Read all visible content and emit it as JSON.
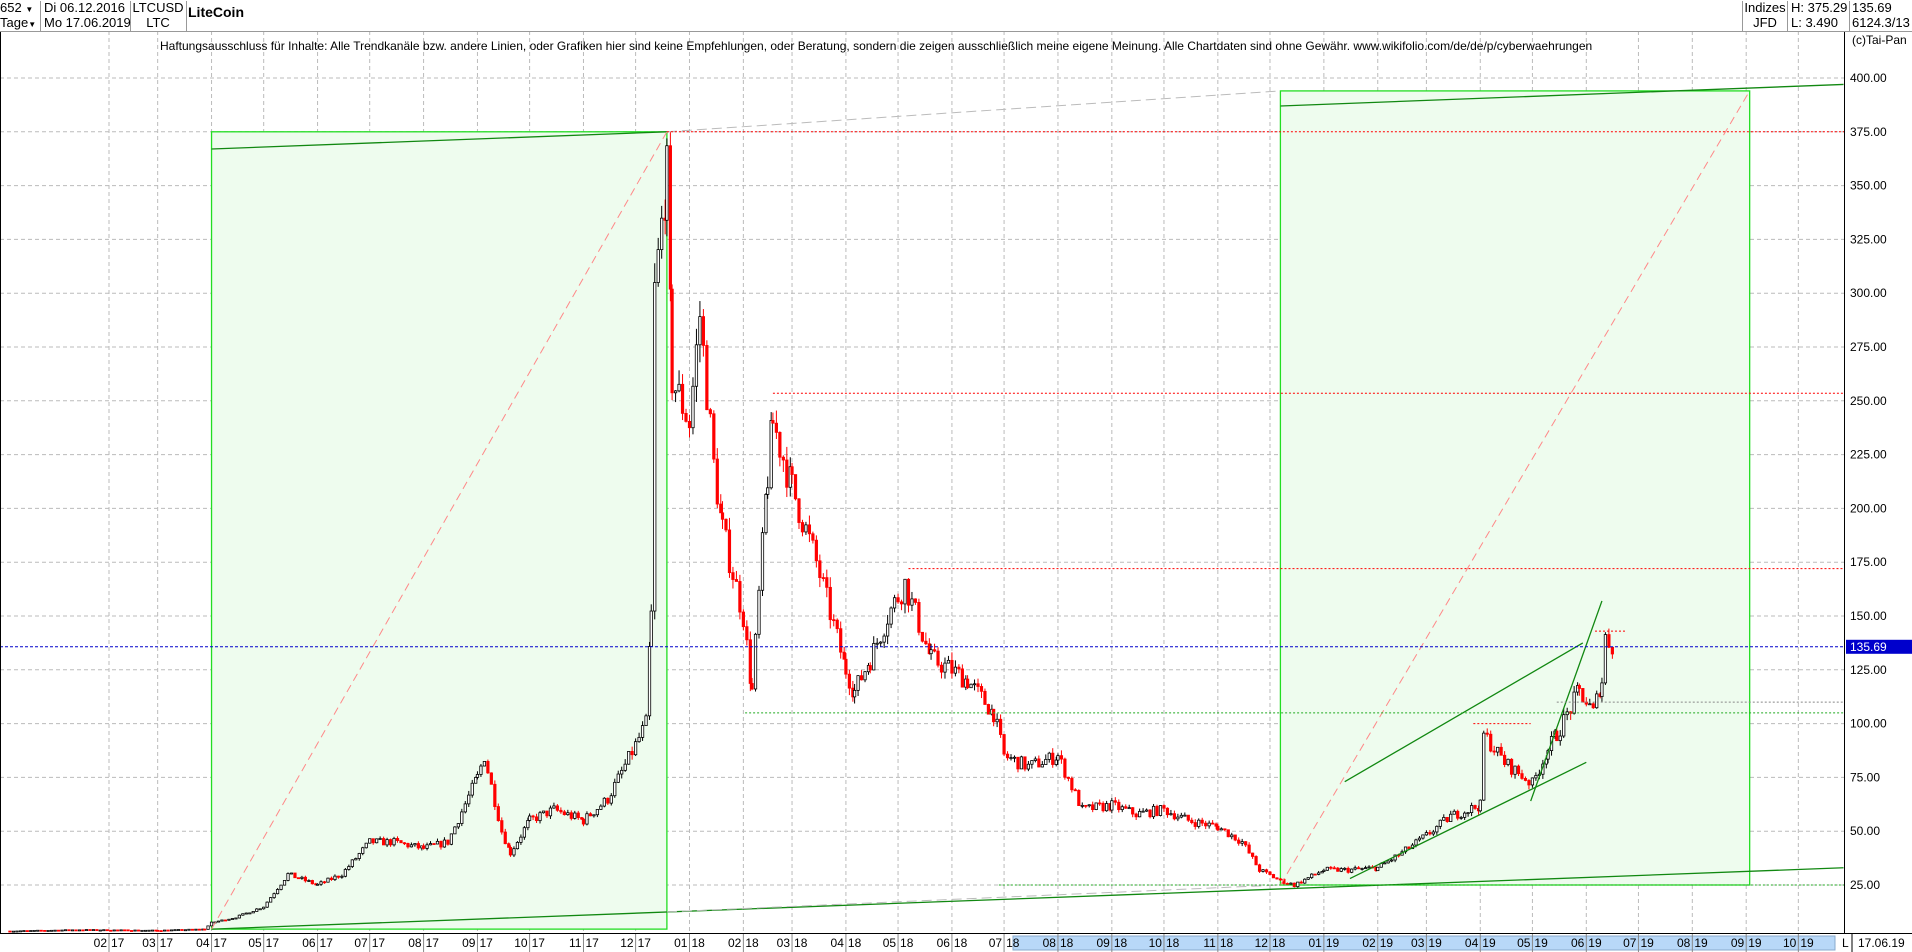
{
  "header": {
    "bars_count": "652",
    "period": "Tage",
    "start_date": "Di 06.12.2016",
    "end_date": "Mo 17.06.2019",
    "symbol": "LTCUSD",
    "symbol_short": "LTC",
    "title": "LiteCoin",
    "market": "Indizes",
    "source": "JFD",
    "high": "H: 375.29",
    "low": "L: 3.490",
    "last": "135.69",
    "info": "6124.3/13",
    "copyright": "(c)Tai-Pan"
  },
  "disclaimer": "Haftungsausschluss für Inhalte: Alle Trendkanäle bzw. andere Linien, oder Grafiken hier sind keine Empfehlungen, oder Beratung, sondern die zeigen ausschließlich meine eigene Meinung. Alle Chartdaten sind ohne Gewähr.  www.wikifolio.com/de/de/p/cyberwaehrungen",
  "colors": {
    "up": "#000000",
    "down": "#ff0000",
    "box_fill": "#eefcee",
    "box_stroke": "#22dd22",
    "trend": "#118811",
    "last_line": "#0000cc",
    "highlight": "#b8d8f8"
  },
  "chart_data": {
    "type": "candlestick",
    "ylim": [
      0,
      410
    ],
    "yticks": [
      "25.00",
      "50.00",
      "75.00",
      "100.00",
      "125.00",
      "150.00",
      "175.00",
      "200.00",
      "225.00",
      "250.00",
      "275.00",
      "300.00",
      "325.00",
      "350.00",
      "375.00",
      "400.00"
    ],
    "xticks": [
      "02 17",
      "03 17",
      "04 17",
      "05 17",
      "06 17",
      "07 17",
      "08 17",
      "09 17",
      "10 17",
      "11 17",
      "12 17",
      "01 18",
      "02 18",
      "03 18",
      "04 18",
      "05 18",
      "06 18",
      "07 18",
      "08 18",
      "09 18",
      "10 18",
      "11 18",
      "12 18",
      "01 19",
      "02 19",
      "03 19",
      "04 19",
      "05 19",
      "06 19",
      "07 19",
      "08 19",
      "09 19",
      "10 19"
    ],
    "xtick_dates": [
      "2017-02-01",
      "2017-03-01",
      "2017-04-01",
      "2017-05-01",
      "2017-06-01",
      "2017-07-01",
      "2017-08-01",
      "2017-09-01",
      "2017-10-01",
      "2017-11-01",
      "2017-12-01",
      "2018-01-01",
      "2018-02-01",
      "2018-03-01",
      "2018-04-01",
      "2018-05-01",
      "2018-06-01",
      "2018-07-01",
      "2018-08-01",
      "2018-09-01",
      "2018-10-01",
      "2018-11-01",
      "2018-12-01",
      "2019-01-01",
      "2019-02-01",
      "2019-03-01",
      "2019-04-01",
      "2019-05-01",
      "2019-06-01",
      "2019-07-01",
      "2019-08-01",
      "2019-09-01",
      "2019-10-01"
    ],
    "axis_end_label": "L",
    "axis_end_date": "17.06.19",
    "last_value_label": "135.69",
    "last_value": 135.69,
    "grid": true,
    "closes": [
      [
        "2016-12-06",
        3.6
      ],
      [
        "2017-01-15",
        4.2
      ],
      [
        "2017-03-01",
        3.9
      ],
      [
        "2017-03-28",
        4.5
      ],
      [
        "2017-04-01",
        7.5
      ],
      [
        "2017-04-15",
        10
      ],
      [
        "2017-05-01",
        15
      ],
      [
        "2017-05-15",
        30
      ],
      [
        "2017-06-01",
        25
      ],
      [
        "2017-06-15",
        30
      ],
      [
        "2017-07-01",
        45
      ],
      [
        "2017-07-15",
        45
      ],
      [
        "2017-08-01",
        42
      ],
      [
        "2017-08-15",
        45
      ],
      [
        "2017-09-01",
        75
      ],
      [
        "2017-09-05",
        85
      ],
      [
        "2017-09-15",
        50
      ],
      [
        "2017-09-20",
        40
      ],
      [
        "2017-10-01",
        55
      ],
      [
        "2017-10-15",
        60
      ],
      [
        "2017-11-01",
        55
      ],
      [
        "2017-11-15",
        65
      ],
      [
        "2017-12-01",
        90
      ],
      [
        "2017-12-07",
        100
      ],
      [
        "2017-12-10",
        150
      ],
      [
        "2017-12-12",
        300
      ],
      [
        "2017-12-19",
        355
      ],
      [
        "2017-12-22",
        260
      ],
      [
        "2018-01-01",
        240
      ],
      [
        "2018-01-07",
        290
      ],
      [
        "2018-01-15",
        220
      ],
      [
        "2018-01-20",
        190
      ],
      [
        "2018-02-01",
        150
      ],
      [
        "2018-02-06",
        115
      ],
      [
        "2018-02-15",
        215
      ],
      [
        "2018-02-18",
        240
      ],
      [
        "2018-03-01",
        210
      ],
      [
        "2018-03-15",
        175
      ],
      [
        "2018-04-01",
        125
      ],
      [
        "2018-04-06",
        115
      ],
      [
        "2018-04-15",
        130
      ],
      [
        "2018-04-25",
        150
      ],
      [
        "2018-05-05",
        165
      ],
      [
        "2018-05-20",
        130
      ],
      [
        "2018-06-01",
        125
      ],
      [
        "2018-06-10",
        120
      ],
      [
        "2018-06-25",
        105
      ],
      [
        "2018-07-01",
        85
      ],
      [
        "2018-07-15",
        80
      ],
      [
        "2018-08-01",
        85
      ],
      [
        "2018-08-15",
        60
      ],
      [
        "2018-09-01",
        62
      ],
      [
        "2018-09-15",
        58
      ],
      [
        "2018-10-01",
        60
      ],
      [
        "2018-10-15",
        55
      ],
      [
        "2018-11-01",
        52
      ],
      [
        "2018-11-15",
        45
      ],
      [
        "2018-11-25",
        32
      ],
      [
        "2018-12-07",
        27
      ],
      [
        "2018-12-15",
        25
      ],
      [
        "2019-01-01",
        32
      ],
      [
        "2019-01-15",
        32
      ],
      [
        "2019-02-01",
        33
      ],
      [
        "2019-02-15",
        40
      ],
      [
        "2019-03-01",
        48
      ],
      [
        "2019-03-15",
        57
      ],
      [
        "2019-04-01",
        62
      ],
      [
        "2019-04-03",
        95
      ],
      [
        "2019-04-15",
        82
      ],
      [
        "2019-05-01",
        72
      ],
      [
        "2019-05-10",
        88
      ],
      [
        "2019-05-15",
        95
      ],
      [
        "2019-05-28",
        115
      ],
      [
        "2019-06-05",
        105
      ],
      [
        "2019-06-10",
        120
      ],
      [
        "2019-06-12",
        140
      ],
      [
        "2019-06-17",
        135.69
      ]
    ],
    "drawings": [
      {
        "kind": "box",
        "from": [
          "2017-04-01",
          4.5
        ],
        "to": [
          "2017-12-19",
          375
        ]
      },
      {
        "kind": "box",
        "from": [
          "2018-12-07",
          25
        ],
        "to": [
          "2019-09-03",
          394
        ]
      },
      {
        "kind": "trend",
        "from": [
          "2017-04-01",
          367
        ],
        "to": [
          "2017-12-19",
          375
        ]
      },
      {
        "kind": "trend",
        "from": [
          "2018-12-07",
          387
        ],
        "to": [
          "2019-10-27",
          397
        ]
      },
      {
        "kind": "trend",
        "from": [
          "2017-04-01",
          4.5
        ],
        "to": [
          "2019-10-27",
          33
        ]
      },
      {
        "kind": "trend",
        "from": [
          "2019-01-13",
          73
        ],
        "to": [
          "2019-05-30",
          137.5
        ]
      },
      {
        "kind": "trend",
        "from": [
          "2019-01-16",
          28
        ],
        "to": [
          "2019-06-01",
          82
        ]
      },
      {
        "kind": "trend",
        "from": [
          "2019-04-30",
          64
        ],
        "to": [
          "2019-06-10",
          157
        ]
      },
      {
        "kind": "diag",
        "from": [
          "2017-04-01",
          4.5
        ],
        "to": [
          "2017-12-19",
          375
        ]
      },
      {
        "kind": "diag",
        "from": [
          "2018-12-07",
          25
        ],
        "to": [
          "2019-09-03",
          394
        ]
      },
      {
        "kind": "gray",
        "from": [
          "2017-12-19",
          375
        ],
        "to": [
          "2018-12-07",
          394
        ]
      },
      {
        "kind": "gray",
        "from": [
          "2017-12-19",
          12.5
        ],
        "to": [
          "2018-12-07",
          25
        ]
      },
      {
        "kind": "hred",
        "from": [
          "2017-12-19",
          375
        ]
      },
      {
        "kind": "hred",
        "from": [
          "2018-02-18",
          253.5
        ]
      },
      {
        "kind": "hred",
        "from": [
          "2018-05-07",
          172
        ]
      },
      {
        "kind": "hred",
        "from": [
          "2019-03-28",
          100
        ],
        "to": [
          "2019-04-30",
          100
        ]
      },
      {
        "kind": "hred",
        "from": [
          "2019-06-06",
          143
        ],
        "to": [
          "2019-06-24",
          143
        ]
      },
      {
        "kind": "hgreen",
        "from": [
          "2018-02-02",
          105
        ]
      },
      {
        "kind": "hgreen",
        "from": [
          "2018-06-28",
          25
        ]
      },
      {
        "kind": "hgray",
        "from": [
          "2019-05-15",
          110
        ]
      }
    ]
  }
}
